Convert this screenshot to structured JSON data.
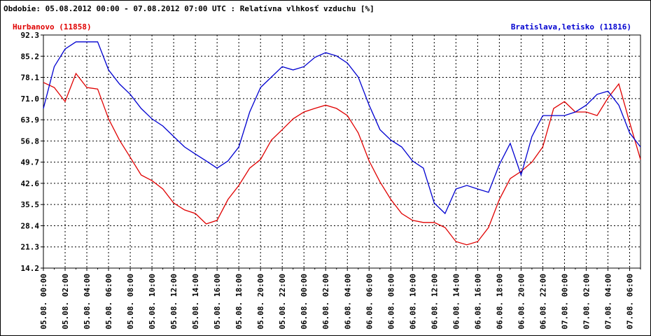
{
  "chart_data": {
    "type": "line",
    "title": "Obdobie: 05.08.2012 00:00 - 07.08.2012 07:00 UTC : Relatívna vlhkosť vzduchu [%]",
    "categories": [
      "05.08. 00:00",
      null,
      "05.08. 02:00",
      null,
      "05.08. 04:00",
      null,
      "05.08. 06:00",
      null,
      "05.08. 08:00",
      null,
      "05.08. 10:00",
      null,
      "05.08. 12:00",
      null,
      "05.08. 14:00",
      null,
      "05.08. 16:00",
      null,
      "05.08. 18:00",
      null,
      "05.08. 20:00",
      null,
      "05.08. 22:00",
      null,
      "06.08. 00:00",
      null,
      "06.08. 02:00",
      null,
      "06.08. 04:00",
      null,
      "06.08. 06:00",
      null,
      "06.08. 08:00",
      null,
      "06.08. 10:00",
      null,
      "06.08. 12:00",
      null,
      "06.08. 14:00",
      null,
      "06.08. 16:00",
      null,
      "06.08. 18:00",
      null,
      "06.08. 20:00",
      null,
      "06.08. 22:00",
      null,
      "07.08. 00:00",
      null,
      "07.08. 02:00",
      null,
      "07.08. 04:00",
      null,
      "07.08. 06:00",
      null
    ],
    "series": [
      {
        "name": "Hurbanovo (11858)",
        "color": "#e00000",
        "values": [
          76.4,
          74.7,
          70,
          79.4,
          74.7,
          74.2,
          64.2,
          57.1,
          51.3,
          45.4,
          43.5,
          40.7,
          36,
          33.7,
          32.5,
          29,
          30.2,
          37.2,
          41.9,
          47.7,
          50.6,
          57.1,
          60.6,
          64.2,
          66.5,
          67.7,
          68.8,
          67.7,
          65.3,
          59.5,
          50.1,
          43.1,
          37.2,
          32.5,
          30.2,
          29.5,
          29.5,
          27.8,
          23.1,
          22,
          23.1,
          27.8,
          37.2,
          44.2,
          46.6,
          49.7,
          54.8,
          67.7,
          70,
          66.5,
          66.5,
          65.3,
          71.2,
          75.9,
          63,
          50.6
        ]
      },
      {
        "name": "Bratislava,letisko (11816)",
        "color": "#0000d0",
        "values": [
          67.7,
          81.7,
          87.6,
          90,
          90,
          90,
          80.6,
          75.9,
          72.4,
          67.7,
          64.2,
          61.8,
          58.3,
          54.8,
          52.4,
          50.1,
          47.7,
          50.1,
          54.8,
          66.5,
          74.7,
          78.2,
          81.7,
          80.6,
          81.7,
          84.8,
          86.4,
          85.3,
          82.9,
          78.2,
          68.8,
          60.6,
          57.1,
          54.8,
          50.1,
          47.7,
          36,
          32.5,
          40.7,
          41.9,
          40.7,
          39.6,
          48.9,
          56,
          45.4,
          58.3,
          65.3,
          65.3,
          65.3,
          66.5,
          68.8,
          72.4,
          73.5,
          68.8,
          59.5,
          54.8
        ]
      }
    ],
    "ylim": [
      14.2,
      92.3
    ],
    "yticks": [
      14.2,
      21.3,
      28.4,
      35.5,
      42.6,
      49.7,
      56.8,
      63.9,
      {
        "value": 71,
        "label": "71.0"
      },
      78.1,
      85.2,
      92.3
    ],
    "grid": true
  }
}
